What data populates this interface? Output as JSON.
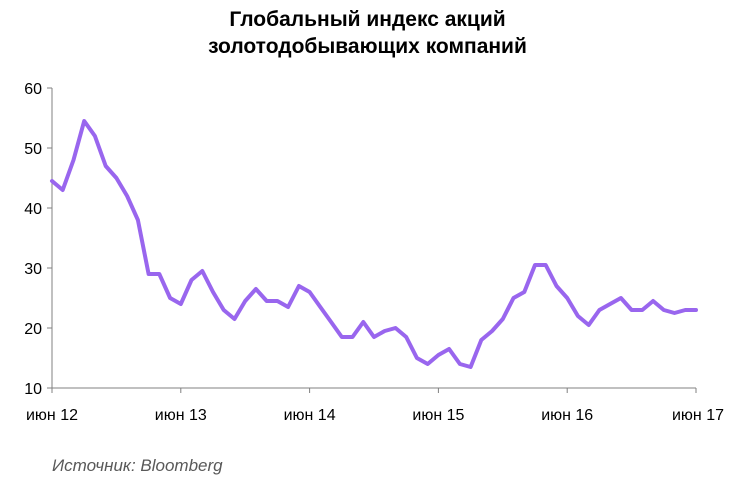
{
  "chart_data": {
    "type": "line",
    "title_lines": [
      "Глобальный индекс акций",
      "золотодобывающих компаний"
    ],
    "xlabel": "",
    "ylabel": "",
    "ylim": [
      10,
      60
    ],
    "y_ticks": [
      "10",
      "20",
      "30",
      "40",
      "50",
      "60"
    ],
    "x_ticks": [
      "июн 12",
      "июн 13",
      "июн 14",
      "июн 15",
      "июн 16",
      "июн 17"
    ],
    "grid": false,
    "legend": "none",
    "line_color": "#9966ee",
    "series": [
      {
        "x": [
          "2012-06",
          "2012-07",
          "2012-08",
          "2012-09",
          "2012-10",
          "2012-11",
          "2012-12",
          "2013-01",
          "2013-02",
          "2013-03",
          "2013-04",
          "2013-05",
          "2013-06",
          "2013-07",
          "2013-08",
          "2013-09",
          "2013-10",
          "2013-11",
          "2013-12",
          "2014-01",
          "2014-02",
          "2014-03",
          "2014-04",
          "2014-05",
          "2014-06",
          "2014-07",
          "2014-08",
          "2014-09",
          "2014-10",
          "2014-11",
          "2014-12",
          "2015-01",
          "2015-02",
          "2015-03",
          "2015-04",
          "2015-05",
          "2015-06",
          "2015-07",
          "2015-08",
          "2015-09",
          "2015-10",
          "2015-11",
          "2015-12",
          "2016-01",
          "2016-02",
          "2016-03",
          "2016-04",
          "2016-05",
          "2016-06",
          "2016-07",
          "2016-08",
          "2016-09",
          "2016-10",
          "2016-11",
          "2016-12",
          "2017-01",
          "2017-02",
          "2017-03",
          "2017-04",
          "2017-05",
          "2017-06"
        ],
        "values": [
          44.5,
          43,
          48,
          54.5,
          52,
          47,
          45,
          42,
          38,
          29,
          29,
          25,
          24,
          28,
          29.5,
          26,
          23,
          21.5,
          24.5,
          26.5,
          24.5,
          24.5,
          23.5,
          27,
          26,
          23.5,
          21,
          18.5,
          18.5,
          21,
          18.5,
          19.5,
          20,
          18.5,
          15,
          14,
          15.5,
          16.5,
          14,
          13.5,
          18,
          19.5,
          21.5,
          25,
          26,
          30.5,
          30.5,
          27,
          25,
          22,
          20.5,
          23,
          24,
          25,
          23,
          23,
          24.5,
          23,
          22.5,
          23,
          23
        ]
      }
    ]
  },
  "source": "Источник: Bloomberg"
}
